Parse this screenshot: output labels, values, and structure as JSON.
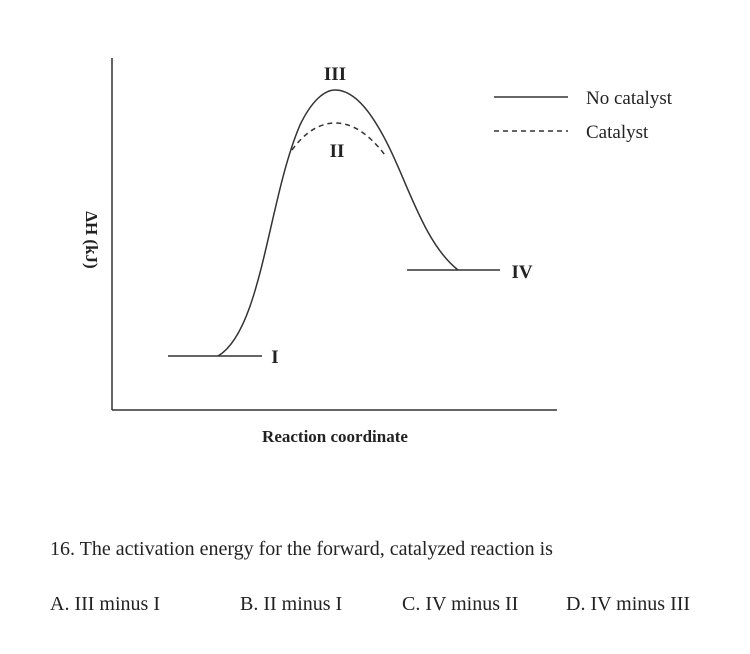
{
  "diagram": {
    "y_axis_label": "ΔH (kJ)",
    "x_axis_label": "Reaction coordinate",
    "point_labels": {
      "I": "I",
      "II": "II",
      "III": "III",
      "IV": "IV"
    },
    "legend": {
      "no_catalyst": "No catalyst",
      "catalyst": "Catalyst"
    },
    "curve_styles": {
      "no_catalyst": "solid",
      "catalyst": "dashed"
    },
    "line_color": "#333333"
  },
  "question": {
    "text": "16. The activation energy for the forward, catalyzed reaction is",
    "choices": [
      "A. III minus I",
      "B. II minus I",
      "C. IV minus II",
      "D. IV minus III"
    ]
  }
}
